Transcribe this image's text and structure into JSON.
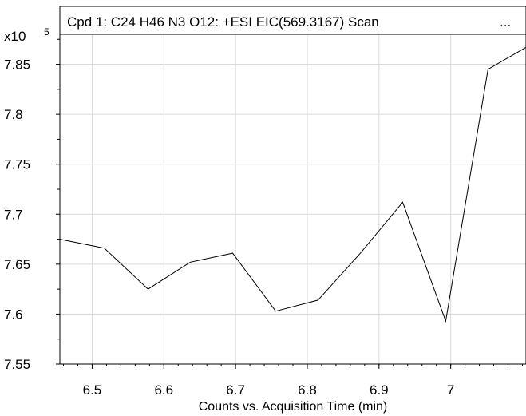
{
  "chart_data": {
    "type": "line",
    "title": "Cpd 1: C24 H46 N3 O12: +ESI EIC(569.3167) Scan",
    "title_more": "...",
    "y_scale_label": "x10",
    "y_scale_exponent": "5",
    "xlabel": "Counts vs. Acquisition Time (min)",
    "ylabel": "",
    "xlim": [
      6.455,
      7.105
    ],
    "ylim": [
      7.55,
      7.88
    ],
    "x_ticks": [
      6.5,
      6.6,
      6.7,
      6.8,
      6.9,
      7.0
    ],
    "x_tick_labels": [
      "6.5",
      "6.6",
      "6.7",
      "6.8",
      "6.9",
      "7"
    ],
    "y_ticks": [
      7.55,
      7.6,
      7.65,
      7.7,
      7.75,
      7.8,
      7.85
    ],
    "y_tick_labels": [
      "7.55",
      "7.6",
      "7.65",
      "7.7",
      "7.75",
      "7.8",
      "7.85"
    ],
    "grid": true,
    "series": [
      {
        "x": [
          6.455,
          6.517,
          6.578,
          6.637,
          6.696,
          6.756,
          6.815,
          6.874,
          6.933,
          6.993,
          7.052,
          7.105
        ],
        "y": [
          7.675,
          7.666,
          7.625,
          7.652,
          7.661,
          7.603,
          7.614,
          7.661,
          7.712,
          7.593,
          7.845,
          7.867
        ]
      }
    ]
  }
}
